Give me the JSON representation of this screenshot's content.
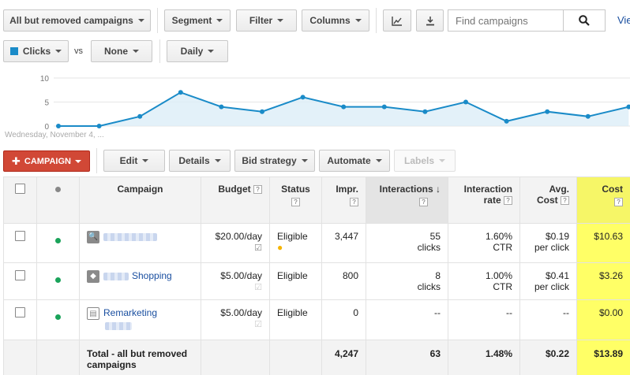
{
  "toolbar": {
    "campaign_filter": "All but removed campaigns",
    "segment": "Segment",
    "filter": "Filter",
    "columns": "Columns",
    "search_placeholder": "Find campaigns",
    "view_link": "Vie"
  },
  "metrics": {
    "metric1": "Clicks",
    "vs": "vs",
    "metric2": "None",
    "period": "Daily",
    "metric1_color": "#1a8bc8"
  },
  "chart_data": {
    "type": "area",
    "series": [
      {
        "name": "Clicks",
        "values": [
          0,
          0,
          2,
          7,
          4,
          3,
          6,
          4,
          4,
          3,
          5,
          1,
          3,
          2,
          4
        ]
      }
    ],
    "y_ticks": [
      "0",
      "5",
      "10"
    ],
    "ylim": [
      0,
      10
    ],
    "x_start_label": "Wednesday, November 4, ...",
    "grid": true,
    "color": "#1a8bc8"
  },
  "actions": {
    "campaign": "CAMPAIGN",
    "edit": "Edit",
    "details": "Details",
    "bid_strategy": "Bid strategy",
    "automate": "Automate",
    "labels": "Labels"
  },
  "table": {
    "headers": {
      "campaign": "Campaign",
      "budget": "Budget",
      "status": "Status",
      "impr": "Impr.",
      "interactions": "Interactions",
      "interaction_rate_1": "Interaction",
      "interaction_rate_2": "rate",
      "avg_cost_1": "Avg.",
      "avg_cost_2": "Cost",
      "cost": "Cost",
      "help": "?"
    },
    "rows": [
      {
        "campaign": "",
        "budget": "$20.00/day",
        "status": "Eligible",
        "impr": "3,447",
        "interactions": "55",
        "interactions_unit": "clicks",
        "rate": "1.60%",
        "rate_unit": "CTR",
        "avg_cost": "$0.19",
        "avg_cost_unit": "per click",
        "cost": "$10.63"
      },
      {
        "campaign": "Shopping",
        "budget": "$5.00/day",
        "status": "Eligible",
        "impr": "800",
        "interactions": "8",
        "interactions_unit": "clicks",
        "rate": "1.00%",
        "rate_unit": "CTR",
        "avg_cost": "$0.41",
        "avg_cost_unit": "per click",
        "cost": "$3.26"
      },
      {
        "campaign": "Remarketing",
        "budget": "$5.00/day",
        "status": "Eligible",
        "impr": "0",
        "interactions": "--",
        "interactions_unit": "",
        "rate": "--",
        "rate_unit": "",
        "avg_cost": "--",
        "avg_cost_unit": "",
        "cost": "$0.00"
      }
    ],
    "total": {
      "label_1": "Total - all but removed",
      "label_2": "campaigns",
      "impr": "4,247",
      "interactions": "63",
      "rate": "1.48%",
      "avg_cost": "$0.22",
      "cost": "$13.89"
    }
  }
}
